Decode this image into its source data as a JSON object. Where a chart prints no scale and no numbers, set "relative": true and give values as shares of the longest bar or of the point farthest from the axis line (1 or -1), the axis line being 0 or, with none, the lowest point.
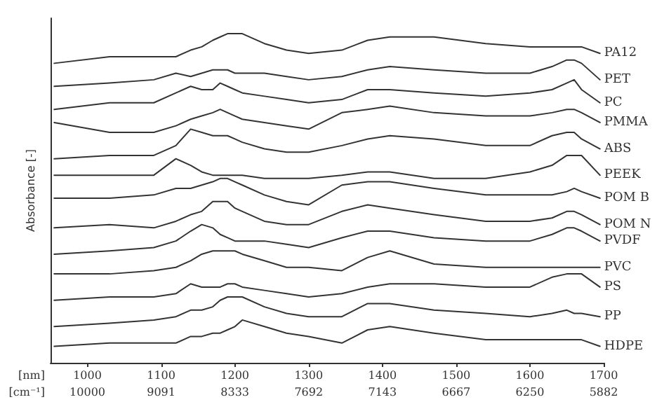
{
  "chart_data": {
    "type": "line",
    "relative": true,
    "ylabel": "Absorbance [-]",
    "xlabel": "[nm]",
    "xlim": [
      950,
      1700
    ],
    "xticks": [
      1000,
      1100,
      1200,
      1300,
      1400,
      1500,
      1600,
      1700
    ],
    "annotations": [
      "[cm⁻¹]",
      "10000",
      "9091",
      "8333",
      "7692",
      "7143",
      "6667",
      "6250",
      "5882"
    ],
    "x": [
      955,
      1030,
      1090,
      1120,
      1140,
      1155,
      1170,
      1180,
      1190,
      1200,
      1210,
      1240,
      1270,
      1300,
      1345,
      1380,
      1410,
      1470,
      1540,
      1600,
      1630,
      1650,
      1660,
      1670,
      1695
    ],
    "grid": false,
    "legend": false,
    "marker": "none",
    "line_style": "solid",
    "series": [
      {
        "name": "PA12",
        "color": "#333333",
        "values": [
          0.91,
          0.93,
          0.93,
          0.93,
          0.95,
          0.96,
          0.98,
          0.99,
          1,
          1,
          1,
          0.97,
          0.95,
          0.94,
          0.95,
          0.98,
          0.99,
          0.99,
          0.97,
          0.96,
          0.96,
          0.96,
          0.96,
          0.96,
          0.94
        ]
      },
      {
        "name": "PET",
        "color": "#333333",
        "values": [
          0.84,
          0.85,
          0.86,
          0.88,
          0.87,
          0.88,
          0.89,
          0.89,
          0.89,
          0.88,
          0.88,
          0.88,
          0.87,
          0.86,
          0.87,
          0.89,
          0.9,
          0.89,
          0.88,
          0.88,
          0.9,
          0.92,
          0.92,
          0.91,
          0.86
        ]
      },
      {
        "name": "PC",
        "color": "#333333",
        "values": [
          0.77,
          0.79,
          0.79,
          0.82,
          0.84,
          0.83,
          0.83,
          0.85,
          0.84,
          0.83,
          0.82,
          0.81,
          0.8,
          0.79,
          0.8,
          0.83,
          0.83,
          0.82,
          0.81,
          0.82,
          0.83,
          0.85,
          0.86,
          0.83,
          0.79
        ]
      },
      {
        "name": "PMMA",
        "color": "#333333",
        "values": [
          0.73,
          0.7,
          0.7,
          0.72,
          0.74,
          0.75,
          0.76,
          0.77,
          0.76,
          0.75,
          0.74,
          0.73,
          0.72,
          0.71,
          0.76,
          0.77,
          0.78,
          0.76,
          0.75,
          0.75,
          0.76,
          0.77,
          0.77,
          0.76,
          0.73
        ]
      },
      {
        "name": "ABS",
        "color": "#333333",
        "values": [
          0.62,
          0.63,
          0.63,
          0.66,
          0.71,
          0.7,
          0.69,
          0.69,
          0.69,
          0.68,
          0.67,
          0.65,
          0.64,
          0.64,
          0.66,
          0.68,
          0.69,
          0.68,
          0.66,
          0.66,
          0.69,
          0.7,
          0.7,
          0.68,
          0.65
        ]
      },
      {
        "name": "PEEK",
        "color": "#333333",
        "values": [
          0.57,
          0.57,
          0.57,
          0.62,
          0.6,
          0.58,
          0.57,
          0.57,
          0.57,
          0.57,
          0.57,
          0.56,
          0.56,
          0.56,
          0.57,
          0.58,
          0.58,
          0.56,
          0.56,
          0.58,
          0.6,
          0.63,
          0.63,
          0.63,
          0.57
        ]
      },
      {
        "name": "POM B",
        "color": "#333333",
        "values": [
          0.5,
          0.5,
          0.51,
          0.53,
          0.53,
          0.54,
          0.55,
          0.56,
          0.56,
          0.55,
          0.54,
          0.51,
          0.49,
          0.48,
          0.54,
          0.55,
          0.55,
          0.53,
          0.51,
          0.51,
          0.51,
          0.52,
          0.53,
          0.52,
          0.5
        ]
      },
      {
        "name": "POM N",
        "color": "#333333",
        "values": [
          0.41,
          0.42,
          0.41,
          0.43,
          0.45,
          0.46,
          0.49,
          0.49,
          0.49,
          0.47,
          0.46,
          0.43,
          0.42,
          0.42,
          0.46,
          0.48,
          0.47,
          0.45,
          0.43,
          0.43,
          0.44,
          0.46,
          0.46,
          0.45,
          0.42
        ]
      },
      {
        "name": "PVDF",
        "color": "#333333",
        "values": [
          0.33,
          0.34,
          0.35,
          0.37,
          0.4,
          0.42,
          0.41,
          0.39,
          0.38,
          0.37,
          0.37,
          0.37,
          0.36,
          0.35,
          0.38,
          0.4,
          0.4,
          0.38,
          0.37,
          0.37,
          0.39,
          0.41,
          0.41,
          0.4,
          0.37
        ]
      },
      {
        "name": "PVC",
        "color": "#333333",
        "values": [
          0.27,
          0.27,
          0.28,
          0.29,
          0.31,
          0.33,
          0.34,
          0.34,
          0.34,
          0.34,
          0.33,
          0.31,
          0.29,
          0.29,
          0.28,
          0.32,
          0.34,
          0.3,
          0.29,
          0.29,
          0.29,
          0.29,
          0.29,
          0.29,
          0.29
        ]
      },
      {
        "name": "PS",
        "color": "#333333",
        "values": [
          0.19,
          0.2,
          0.2,
          0.21,
          0.24,
          0.23,
          0.23,
          0.23,
          0.24,
          0.24,
          0.23,
          0.22,
          0.21,
          0.2,
          0.21,
          0.23,
          0.24,
          0.24,
          0.23,
          0.23,
          0.26,
          0.27,
          0.27,
          0.27,
          0.23
        ]
      },
      {
        "name": "PP",
        "color": "#333333",
        "values": [
          0.11,
          0.12,
          0.13,
          0.14,
          0.16,
          0.16,
          0.17,
          0.19,
          0.2,
          0.2,
          0.2,
          0.17,
          0.15,
          0.14,
          0.14,
          0.18,
          0.18,
          0.16,
          0.15,
          0.14,
          0.15,
          0.16,
          0.15,
          0.15,
          0.14
        ]
      },
      {
        "name": "HDPE",
        "color": "#333333",
        "values": [
          0.05,
          0.06,
          0.06,
          0.06,
          0.08,
          0.08,
          0.09,
          0.09,
          0.1,
          0.11,
          0.13,
          0.11,
          0.09,
          0.08,
          0.06,
          0.1,
          0.11,
          0.09,
          0.07,
          0.07,
          0.07,
          0.07,
          0.07,
          0.07,
          0.05
        ]
      }
    ]
  }
}
